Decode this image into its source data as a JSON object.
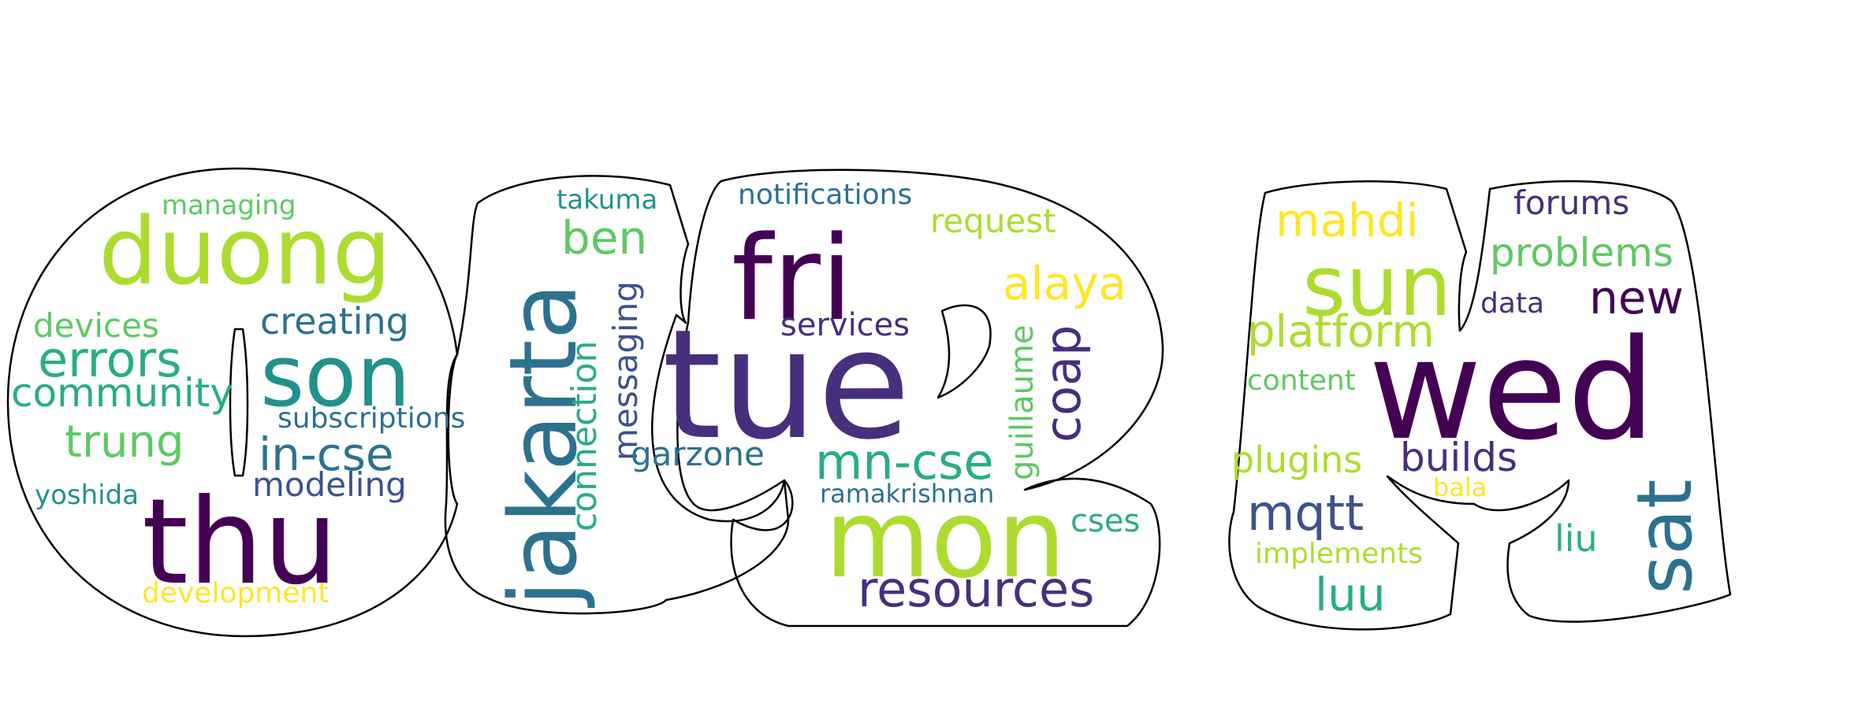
{
  "palette": {
    "dark_purple": "#440154",
    "indigo": "#472f7d",
    "blue": "#3b528b",
    "teal_blue": "#2c728e",
    "teal": "#21918c",
    "green_teal": "#28ae80",
    "green": "#5ec962",
    "lime": "#addc30",
    "yellow": "#fde725"
  },
  "words": [
    {
      "text": "managing",
      "color": "#5ec962"
    },
    {
      "text": "duong",
      "color": "#addc30"
    },
    {
      "text": "devices",
      "color": "#5ec962"
    },
    {
      "text": "creating",
      "color": "#2c728e"
    },
    {
      "text": "errors",
      "color": "#28ae80"
    },
    {
      "text": "son",
      "color": "#21918c"
    },
    {
      "text": "community",
      "color": "#28ae80"
    },
    {
      "text": "subscriptions",
      "color": "#2c728e"
    },
    {
      "text": "trung",
      "color": "#5ec962"
    },
    {
      "text": "in-cse",
      "color": "#2c728e"
    },
    {
      "text": "modeling",
      "color": "#3b528b"
    },
    {
      "text": "yoshida",
      "color": "#21918c"
    },
    {
      "text": "thu",
      "color": "#440154"
    },
    {
      "text": "development",
      "color": "#fde725"
    },
    {
      "text": "takuma",
      "color": "#21918c"
    },
    {
      "text": "jakarta",
      "color": "#2c728e"
    },
    {
      "text": "ben",
      "color": "#5ec962"
    },
    {
      "text": "messaging",
      "color": "#3b528b"
    },
    {
      "text": "connection",
      "color": "#28ae80"
    },
    {
      "text": "garzone",
      "color": "#2c728e"
    },
    {
      "text": "notifications",
      "color": "#2c728e"
    },
    {
      "text": "fri",
      "color": "#440154"
    },
    {
      "text": "request",
      "color": "#addc30"
    },
    {
      "text": "alaya",
      "color": "#fde725"
    },
    {
      "text": "services",
      "color": "#472f7d"
    },
    {
      "text": "tue",
      "color": "#472f7d"
    },
    {
      "text": "guillaume",
      "color": "#5ec962"
    },
    {
      "text": "coap",
      "color": "#472f7d"
    },
    {
      "text": "mn-cse",
      "color": "#28ae80"
    },
    {
      "text": "ramakrishnan",
      "color": "#2c728e"
    },
    {
      "text": "mon",
      "color": "#addc30"
    },
    {
      "text": "cses",
      "color": "#28ae80"
    },
    {
      "text": "resources",
      "color": "#472f7d"
    },
    {
      "text": "mahdi",
      "color": "#fde725"
    },
    {
      "text": "forums",
      "color": "#472f7d"
    },
    {
      "text": "sun",
      "color": "#addc30"
    },
    {
      "text": "problems",
      "color": "#5ec962"
    },
    {
      "text": "data",
      "color": "#472f7d"
    },
    {
      "text": "new",
      "color": "#440154"
    },
    {
      "text": "platform",
      "color": "#addc30"
    },
    {
      "text": "wed",
      "color": "#440154"
    },
    {
      "text": "content",
      "color": "#5ec962"
    },
    {
      "text": "plugins",
      "color": "#addc30"
    },
    {
      "text": "builds",
      "color": "#472f7d"
    },
    {
      "text": "bala",
      "color": "#fde725"
    },
    {
      "text": "mqtt",
      "color": "#3b528b"
    },
    {
      "text": "sat",
      "color": "#2c728e"
    },
    {
      "text": "implements",
      "color": "#addc30"
    },
    {
      "text": "liu",
      "color": "#28ae80"
    },
    {
      "text": "luu",
      "color": "#28ae80"
    }
  ]
}
